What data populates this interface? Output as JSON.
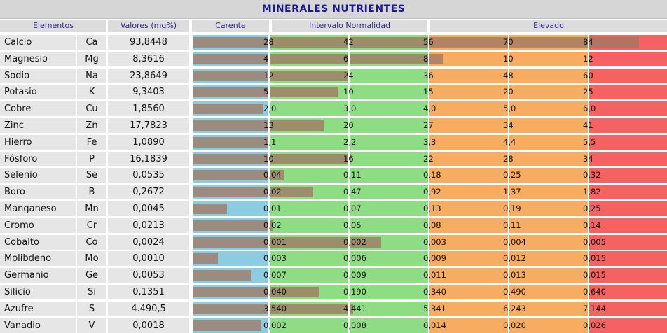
{
  "title": "MINERALES NUTRIENTES",
  "headers": {
    "elements": "Elementos",
    "values": "Valores (mg%)",
    "deficient": "Carente",
    "normal": "Intervalo Normalidad",
    "elevated": "Elevado"
  },
  "colors": {
    "deficient": "#8ccbe0",
    "normal": "#8edc84",
    "elevated_low": "#f6ad62",
    "elevated_high": "#f46262",
    "bar": "#a07864",
    "title": "#1a1a8c"
  },
  "chart_data": {
    "type": "table",
    "columns": [
      "Elementos",
      "Valores (mg%)",
      "Carente",
      "Intervalo Normalidad",
      "Elevado"
    ],
    "rows": [
      {
        "name": "Calcio",
        "symbol": "Ca",
        "value": "93,8448",
        "value_num": 93.8448,
        "ticks": [
          "28",
          "42",
          "56",
          "70",
          "84"
        ],
        "tick_nums": [
          28,
          42,
          56,
          70,
          84
        ]
      },
      {
        "name": "Magnesio",
        "symbol": "Mg",
        "value": "8,3616",
        "value_num": 8.3616,
        "ticks": [
          "4",
          "6",
          "8",
          "10",
          "12"
        ],
        "tick_nums": [
          4,
          6,
          8,
          10,
          12
        ]
      },
      {
        "name": "Sodio",
        "symbol": "Na",
        "value": "23,8649",
        "value_num": 23.8649,
        "ticks": [
          "12",
          "24",
          "36",
          "48",
          "60"
        ],
        "tick_nums": [
          12,
          24,
          36,
          48,
          60
        ]
      },
      {
        "name": "Potasio",
        "symbol": "K",
        "value": "9,3403",
        "value_num": 9.3403,
        "ticks": [
          "5",
          "10",
          "15",
          "20",
          "25"
        ],
        "tick_nums": [
          5,
          10,
          15,
          20,
          25
        ]
      },
      {
        "name": "Cobre",
        "symbol": "Cu",
        "value": "1,8560",
        "value_num": 1.856,
        "ticks": [
          "2,0",
          "3,0",
          "4,0",
          "5,0",
          "6,0"
        ],
        "tick_nums": [
          2.0,
          3.0,
          4.0,
          5.0,
          6.0
        ]
      },
      {
        "name": "Zinc",
        "symbol": "Zn",
        "value": "17,7823",
        "value_num": 17.7823,
        "ticks": [
          "13",
          "20",
          "27",
          "34",
          "41"
        ],
        "tick_nums": [
          13,
          20,
          27,
          34,
          41
        ]
      },
      {
        "name": "Hierro",
        "symbol": "Fe",
        "value": "1,0890",
        "value_num": 1.089,
        "ticks": [
          "1,1",
          "2,2",
          "3,3",
          "4,4",
          "5,5"
        ],
        "tick_nums": [
          1.1,
          2.2,
          3.3,
          4.4,
          5.5
        ]
      },
      {
        "name": "Fósforo",
        "symbol": "P",
        "value": "16,1839",
        "value_num": 16.1839,
        "ticks": [
          "10",
          "16",
          "22",
          "28",
          "34"
        ],
        "tick_nums": [
          10,
          16,
          22,
          28,
          34
        ]
      },
      {
        "name": "Selenio",
        "symbol": "Se",
        "value": "0,0535",
        "value_num": 0.0535,
        "ticks": [
          "0,04",
          "0,11",
          "0,18",
          "0,25",
          "0,32"
        ],
        "tick_nums": [
          0.04,
          0.11,
          0.18,
          0.25,
          0.32
        ]
      },
      {
        "name": "Boro",
        "symbol": "B",
        "value": "0,2672",
        "value_num": 0.2672,
        "ticks": [
          "0,02",
          "0,47",
          "0,92",
          "1,37",
          "1,82"
        ],
        "tick_nums": [
          0.02,
          0.47,
          0.92,
          1.37,
          1.82
        ]
      },
      {
        "name": "Manganeso",
        "symbol": "Mn",
        "value": "0,0045",
        "value_num": 0.0045,
        "ticks": [
          "0,01",
          "0,07",
          "0,13",
          "0,19",
          "0,25"
        ],
        "tick_nums": [
          0.01,
          0.07,
          0.13,
          0.19,
          0.25
        ]
      },
      {
        "name": "Cromo",
        "symbol": "Cr",
        "value": "0,0213",
        "value_num": 0.0213,
        "ticks": [
          "0,02",
          "0,05",
          "0,08",
          "0,11",
          "0,14"
        ],
        "tick_nums": [
          0.02,
          0.05,
          0.08,
          0.11,
          0.14
        ]
      },
      {
        "name": "Cobalto",
        "symbol": "Co",
        "value": "0,0024",
        "value_num": 0.0024,
        "ticks": [
          "0,001",
          "0,002",
          "0,003",
          "0,004",
          "0,005"
        ],
        "tick_nums": [
          0.001,
          0.002,
          0.003,
          0.004,
          0.005
        ]
      },
      {
        "name": "Molibdeno",
        "symbol": "Mo",
        "value": "0,0010",
        "value_num": 0.001,
        "ticks": [
          "0,003",
          "0,006",
          "0,009",
          "0,012",
          "0,015"
        ],
        "tick_nums": [
          0.003,
          0.006,
          0.009,
          0.012,
          0.015
        ]
      },
      {
        "name": "Germanio",
        "symbol": "Ge",
        "value": "0,0053",
        "value_num": 0.0053,
        "ticks": [
          "0,007",
          "0,009",
          "0,011",
          "0,013",
          "0,015"
        ],
        "tick_nums": [
          0.007,
          0.009,
          0.011,
          0.013,
          0.015
        ]
      },
      {
        "name": "Silicio",
        "symbol": "Si",
        "value": "0,1351",
        "value_num": 0.1351,
        "ticks": [
          "0,040",
          "0,190",
          "0,340",
          "0,490",
          "0,640"
        ],
        "tick_nums": [
          0.04,
          0.19,
          0.34,
          0.49,
          0.64
        ]
      },
      {
        "name": "Azufre",
        "symbol": "S",
        "value": "4.490,5",
        "value_num": 4490.5,
        "ticks": [
          "3.540",
          "4.441",
          "5.341",
          "6.243",
          "7.144"
        ],
        "tick_nums": [
          3540,
          4441,
          5341,
          6243,
          7144
        ]
      },
      {
        "name": "Vanadio",
        "symbol": "V",
        "value": "0,0018",
        "value_num": 0.0018,
        "ticks": [
          "0,002",
          "0,008",
          "0,014",
          "0,020",
          "0,026"
        ],
        "tick_nums": [
          0.002,
          0.008,
          0.014,
          0.02,
          0.026
        ]
      }
    ]
  }
}
